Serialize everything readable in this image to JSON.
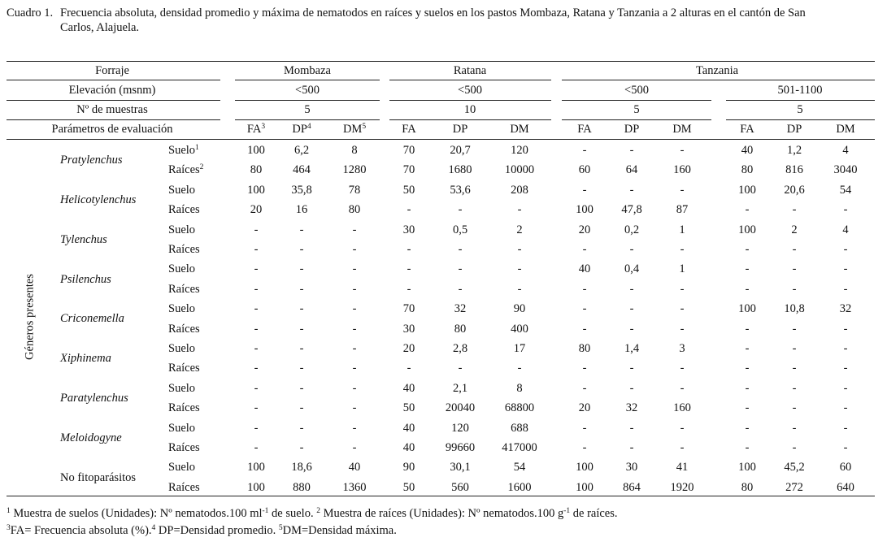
{
  "caption": {
    "number": "Cuadro 1.",
    "line1": "Frecuencia absoluta, densidad promedio y máxima de nematodos en raíces y suelos en los pastos Mombaza, Ratana y Tanzania a 2 alturas en el cantón de San",
    "line2": "Carlos, Alajuela."
  },
  "header": {
    "forraje_label": "Forraje",
    "forrajes": [
      "Mombaza",
      "Ratana",
      "Tanzania"
    ],
    "elevacion_label": "Elevación (msnm)",
    "elevaciones": [
      "<500",
      "<500",
      "<500",
      "501-1100"
    ],
    "muestras_label": "Nº de muestras",
    "muestras": [
      "5",
      "10",
      "5",
      "5"
    ],
    "parametros_label": "Parámetros de evaluación",
    "params": [
      "FA",
      "DP",
      "DM",
      "FA",
      "DP",
      "DM",
      "FA",
      "DP",
      "DM",
      "FA",
      "DP",
      "DM"
    ],
    "param_sups": [
      "3",
      "4",
      "5"
    ]
  },
  "side_label": "Géneros presentes",
  "genera": [
    {
      "name": "Pratylenchus",
      "italic": true,
      "rows": [
        {
          "type": "Suelo",
          "sup": "1",
          "values": [
            "100",
            "6,2",
            "8",
            "70",
            "20,7",
            "120",
            "-",
            "-",
            "-",
            "40",
            "1,2",
            "4"
          ]
        },
        {
          "type": "Raíces",
          "sup": "2",
          "values": [
            "80",
            "464",
            "1280",
            "70",
            "1680",
            "10000",
            "60",
            "64",
            "160",
            "80",
            "816",
            "3040"
          ]
        }
      ]
    },
    {
      "name": "Helicotylenchus",
      "italic": true,
      "rows": [
        {
          "type": "Suelo",
          "sup": "",
          "values": [
            "100",
            "35,8",
            "78",
            "50",
            "53,6",
            "208",
            "-",
            "-",
            "-",
            "100",
            "20,6",
            "54"
          ]
        },
        {
          "type": "Raíces",
          "sup": "",
          "values": [
            "20",
            "16",
            "80",
            "-",
            "-",
            "-",
            "100",
            "47,8",
            "87",
            "-",
            "-",
            "-"
          ]
        }
      ]
    },
    {
      "name": "Tylenchus",
      "italic": true,
      "rows": [
        {
          "type": "Suelo",
          "sup": "",
          "values": [
            "-",
            "-",
            "-",
            "30",
            "0,5",
            "2",
            "20",
            "0,2",
            "1",
            "100",
            "2",
            "4"
          ]
        },
        {
          "type": "Raíces",
          "sup": "",
          "values": [
            "-",
            "-",
            "-",
            "-",
            "-",
            "-",
            "-",
            "-",
            "-",
            "-",
            "-",
            "-"
          ]
        }
      ]
    },
    {
      "name": "Psilenchus",
      "italic": true,
      "rows": [
        {
          "type": "Suelo",
          "sup": "",
          "values": [
            "-",
            "-",
            "-",
            "-",
            "-",
            "-",
            "40",
            "0,4",
            "1",
            "-",
            "-",
            "-"
          ]
        },
        {
          "type": "Raíces",
          "sup": "",
          "values": [
            "-",
            "-",
            "-",
            "-",
            "-",
            "-",
            "-",
            "-",
            "-",
            "-",
            "-",
            "-"
          ]
        }
      ]
    },
    {
      "name": "Criconemella",
      "italic": true,
      "rows": [
        {
          "type": "Suelo",
          "sup": "",
          "values": [
            "-",
            "-",
            "-",
            "70",
            "32",
            "90",
            "-",
            "-",
            "-",
            "100",
            "10,8",
            "32"
          ]
        },
        {
          "type": "Raíces",
          "sup": "",
          "values": [
            "-",
            "-",
            "-",
            "30",
            "80",
            "400",
            "-",
            "-",
            "-",
            "-",
            "-",
            "-"
          ]
        }
      ]
    },
    {
      "name": "Xiphinema",
      "italic": true,
      "rows": [
        {
          "type": "Suelo",
          "sup": "",
          "values": [
            "-",
            "-",
            "-",
            "20",
            "2,8",
            "17",
            "80",
            "1,4",
            "3",
            "-",
            "-",
            "-"
          ]
        },
        {
          "type": "Raíces",
          "sup": "",
          "values": [
            "-",
            "-",
            "-",
            "-",
            "-",
            "-",
            "-",
            "-",
            "-",
            "-",
            "-",
            "-"
          ]
        }
      ]
    },
    {
      "name": "Paratylenchus",
      "italic": true,
      "rows": [
        {
          "type": "Suelo",
          "sup": "",
          "values": [
            "-",
            "-",
            "-",
            "40",
            "2,1",
            "8",
            "-",
            "-",
            "-",
            "-",
            "-",
            "-"
          ]
        },
        {
          "type": "Raíces",
          "sup": "",
          "values": [
            "-",
            "-",
            "-",
            "50",
            "20040",
            "68800",
            "20",
            "32",
            "160",
            "-",
            "-",
            "-"
          ]
        }
      ]
    },
    {
      "name": "Meloidogyne",
      "italic": true,
      "rows": [
        {
          "type": "Suelo",
          "sup": "",
          "values": [
            "-",
            "-",
            "-",
            "40",
            "120",
            "688",
            "-",
            "-",
            "-",
            "-",
            "-",
            "-"
          ]
        },
        {
          "type": "Raíces",
          "sup": "",
          "values": [
            "-",
            "-",
            "-",
            "40",
            "99660",
            "417000",
            "-",
            "-",
            "-",
            "-",
            "-",
            "-"
          ]
        }
      ]
    },
    {
      "name": "No fitoparásitos",
      "italic": false,
      "rows": [
        {
          "type": "Suelo",
          "sup": "",
          "values": [
            "100",
            "18,6",
            "40",
            "90",
            "30,1",
            "54",
            "100",
            "30",
            "41",
            "100",
            "45,2",
            "60"
          ]
        },
        {
          "type": "Raíces",
          "sup": "",
          "values": [
            "100",
            "880",
            "1360",
            "50",
            "560",
            "1600",
            "100",
            "864",
            "1920",
            "80",
            "272",
            "640"
          ]
        }
      ]
    }
  ],
  "footnotes": {
    "line1": [
      {
        "sup": "1",
        "text": " Muestra de suelos (Unidades): Nº nematodos.100 ml"
      },
      {
        "sup": "-1",
        "text": " de suelo. "
      },
      {
        "sup": "2",
        "text": " Muestra de raíces (Unidades): Nº nematodos.100 g"
      },
      {
        "sup": "-1",
        "text": " de raíces."
      }
    ],
    "line2": [
      {
        "sup": "3",
        "text": "FA= Frecuencia absoluta (%)."
      },
      {
        "sup": "4",
        "text": " DP=Densidad promedio. "
      },
      {
        "sup": "5",
        "text": "DM=Densidad máxima."
      }
    ]
  }
}
